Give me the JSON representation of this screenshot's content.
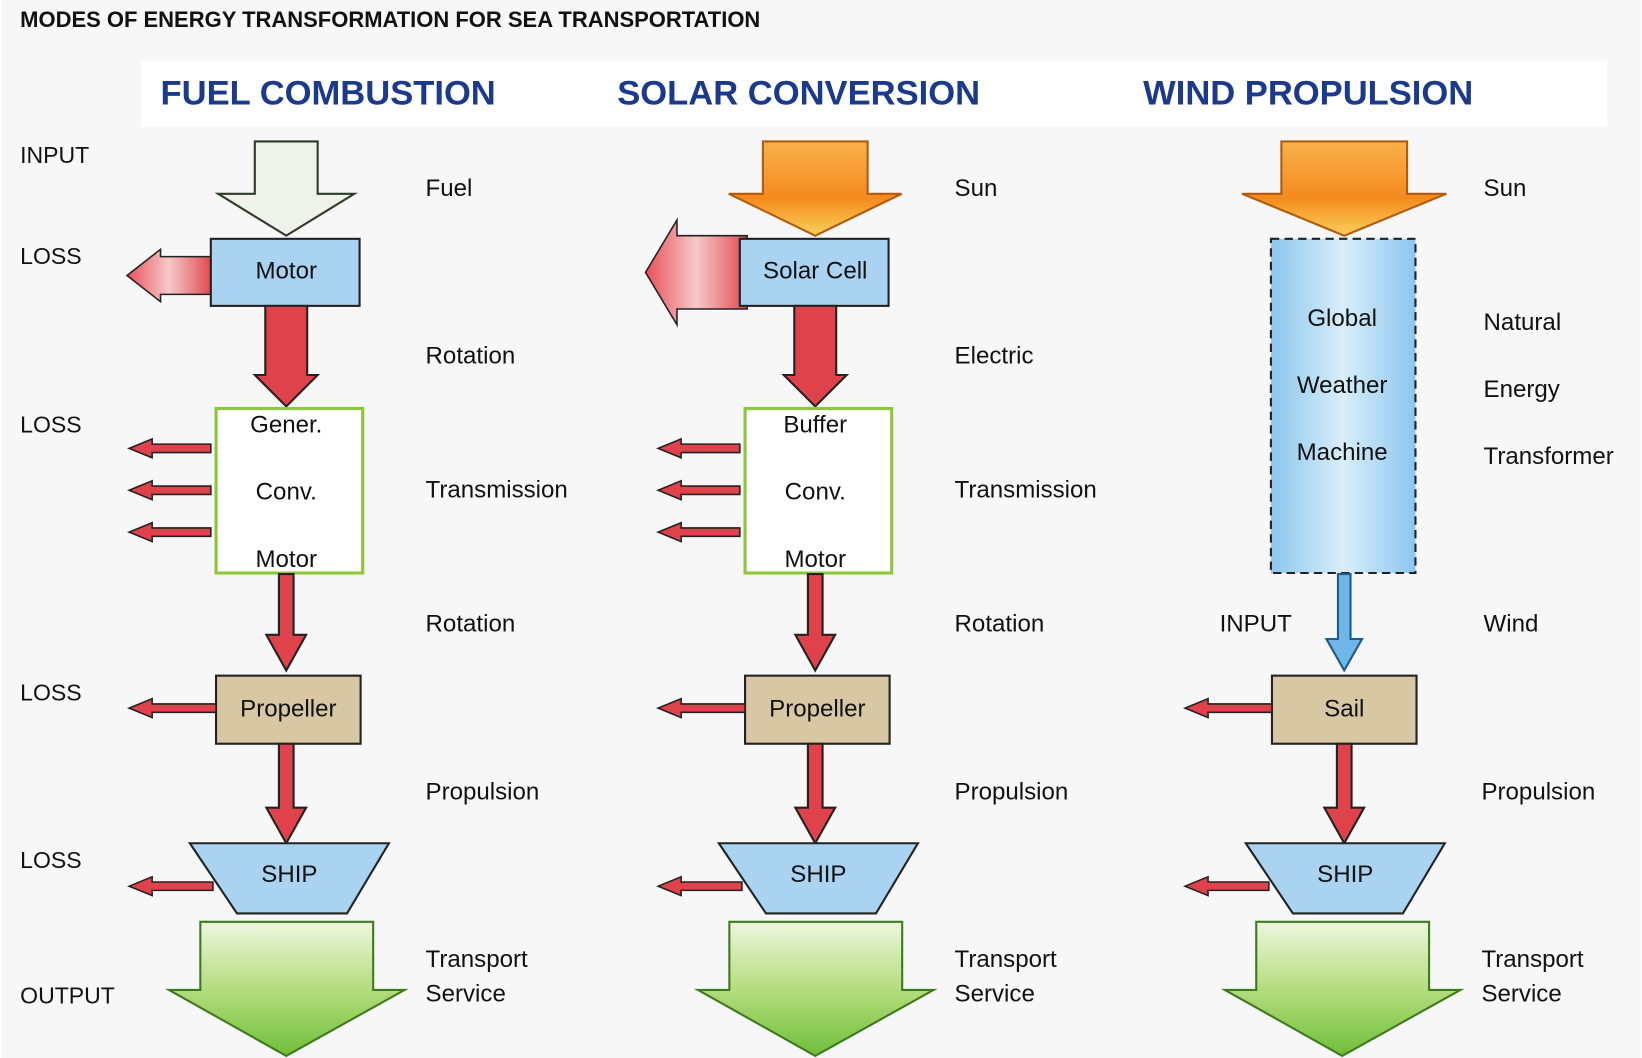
{
  "title": "MODES OF ENERGY TRANSFORMATION FOR SEA TRANSPORTATION",
  "side_labels": [
    "INPUT",
    "LOSS",
    "LOSS",
    "LOSS",
    "LOSS",
    "OUTPUT"
  ],
  "columns": [
    {
      "heading": "FUEL COMBUSTION",
      "source": "Fuel",
      "converter": "Motor",
      "flow_1": "Rotation",
      "transmission_box": [
        "Gener.",
        "Conv.",
        "Motor"
      ],
      "flow_2": "Transmission",
      "flow_3": "Rotation",
      "propeller": "Propeller",
      "flow_4": "Propulsion",
      "vessel": "SHIP",
      "output": [
        "Transport",
        "Service"
      ]
    },
    {
      "heading": "SOLAR CONVERSION",
      "source": "Sun",
      "converter": "Solar Cell",
      "flow_1": "Electric",
      "transmission_box": [
        "Buffer",
        "Conv.",
        "Motor"
      ],
      "flow_2": "Transmission",
      "flow_3": "Rotation",
      "propeller": "Propeller",
      "flow_4": "Propulsion",
      "vessel": "SHIP",
      "output": [
        "Transport",
        "Service"
      ]
    },
    {
      "heading": "WIND PROPULSION",
      "source": "Sun",
      "transformer_box": [
        "Global",
        "Weather",
        "Machine"
      ],
      "transformer_label": [
        "Natural",
        "Energy",
        "Transformer"
      ],
      "input": "INPUT",
      "flow_input": "Wind",
      "propeller": "Sail",
      "flow_4": "Propulsion",
      "vessel": "SHIP",
      "output": [
        "Transport",
        "Service"
      ]
    }
  ]
}
